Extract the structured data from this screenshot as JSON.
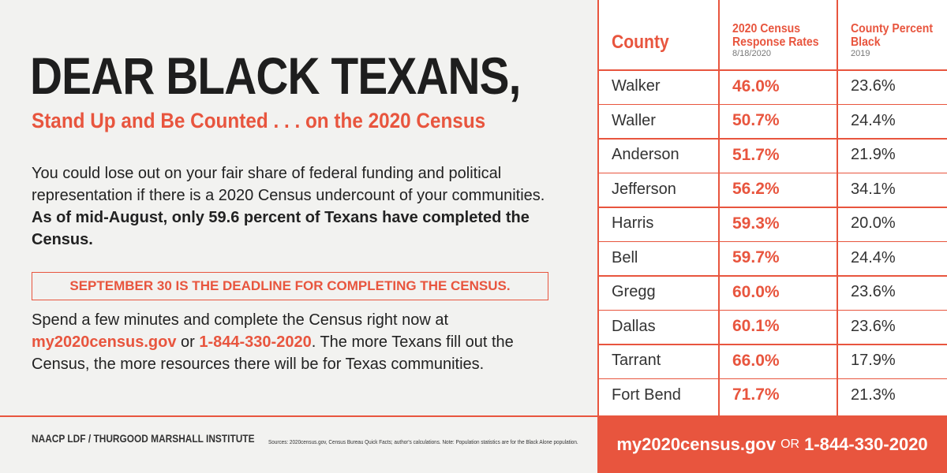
{
  "header": {
    "title": "DEAR BLACK TEXANS,",
    "subtitle": "Stand Up and Be Counted . . . on the 2020 Census"
  },
  "body": {
    "paragraph1": [
      "You could lose out on your fair share of federal funding and political representation if there is a 2020 Census undercount of your communities.",
      "As of mid-August, only 59.6 percent of Texans have completed the Census."
    ],
    "deadline": "SEPTEMBER 30 IS THE DEADLINE FOR COMPLETING THE CENSUS.",
    "paragraph2": [
      "Spend a few minutes and complete the Census right now at",
      "my2020census.gov",
      "or",
      "1-844-330-2020",
      ". The more Texans fill out the Census, the more resources there will be for Texas communities."
    ]
  },
  "table": {
    "columns": [
      {
        "title": "County"
      },
      {
        "title": "2020 Census Response Rates",
        "note": "8/18/2020"
      },
      {
        "title": "County Percent Black",
        "note": "2019"
      }
    ],
    "rows": [
      [
        "Walker",
        "46.0%",
        "23.6%"
      ],
      [
        "Waller",
        "50.7%",
        "24.4%"
      ],
      [
        "Anderson",
        "51.7%",
        "21.9%"
      ],
      [
        "Jefferson",
        "56.2%",
        "34.1%"
      ],
      [
        "Harris",
        "59.3%",
        "20.0%"
      ],
      [
        "Bell",
        "59.7%",
        "24.4%"
      ],
      [
        "Gregg",
        "60.0%",
        "23.6%"
      ],
      [
        "Dallas",
        "60.1%",
        "23.6%"
      ],
      [
        "Tarrant",
        "66.0%",
        "17.9%"
      ],
      [
        "Fort Bend",
        "71.7%",
        "21.3%"
      ]
    ]
  },
  "footer": {
    "credit": "NAACP LDF / THURGOOD MARSHALL INSTITUTE",
    "sources": "Sources: 2020census.gov, Census Bureau Quick Facts; author's calculations. Note: Population statistics are for the Black Alone population.",
    "cta": [
      "my2020census.gov",
      "OR",
      "1-844-330-2020"
    ]
  }
}
